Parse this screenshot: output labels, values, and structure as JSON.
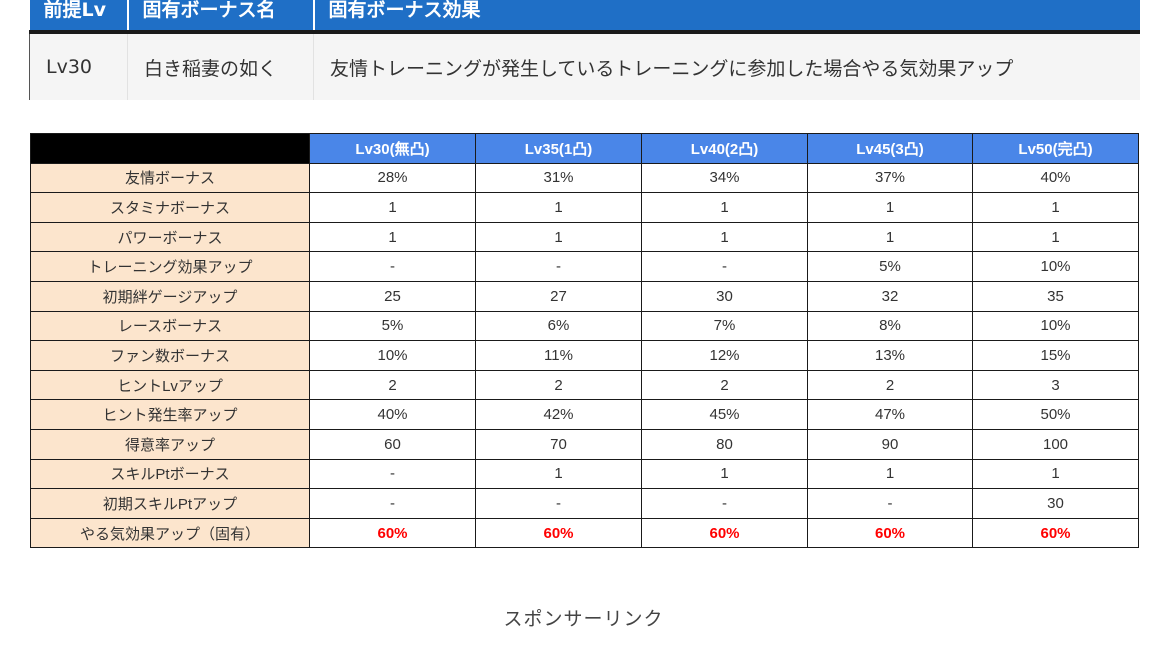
{
  "unique_bonus": {
    "headers": [
      "前提Lv",
      "固有ボーナス名",
      "固有ボーナス効果"
    ],
    "row": {
      "level": "Lv30",
      "name": "白き稲妻の如く",
      "effect": "友情トレーニングが発生しているトレーニングに参加した場合やる気効果アップ"
    }
  },
  "stats_table": {
    "columns": [
      "Lv30(無凸)",
      "Lv35(1凸)",
      "Lv40(2凸)",
      "Lv45(3凸)",
      "Lv50(完凸)"
    ],
    "rows": [
      {
        "label": "友情ボーナス",
        "values": [
          "28%",
          "31%",
          "34%",
          "37%",
          "40%"
        ]
      },
      {
        "label": "スタミナボーナス",
        "values": [
          "1",
          "1",
          "1",
          "1",
          "1"
        ]
      },
      {
        "label": "パワーボーナス",
        "values": [
          "1",
          "1",
          "1",
          "1",
          "1"
        ]
      },
      {
        "label": "トレーニング効果アップ",
        "values": [
          "-",
          "-",
          "-",
          "5%",
          "10%"
        ]
      },
      {
        "label": "初期絆ゲージアップ",
        "values": [
          "25",
          "27",
          "30",
          "32",
          "35"
        ]
      },
      {
        "label": "レースボーナス",
        "values": [
          "5%",
          "6%",
          "7%",
          "8%",
          "10%"
        ]
      },
      {
        "label": "ファン数ボーナス",
        "values": [
          "10%",
          "11%",
          "12%",
          "13%",
          "15%"
        ]
      },
      {
        "label": "ヒントLvアップ",
        "values": [
          "2",
          "2",
          "2",
          "2",
          "3"
        ]
      },
      {
        "label": "ヒント発生率アップ",
        "values": [
          "40%",
          "42%",
          "45%",
          "47%",
          "50%"
        ]
      },
      {
        "label": "得意率アップ",
        "values": [
          "60",
          "70",
          "80",
          "90",
          "100"
        ]
      },
      {
        "label": "スキルPtボーナス",
        "values": [
          "-",
          "1",
          "1",
          "1",
          "1"
        ]
      },
      {
        "label": "初期スキルPtアップ",
        "values": [
          "-",
          "-",
          "-",
          "-",
          "30"
        ]
      },
      {
        "label": "やる気効果アップ（固有）",
        "values": [
          "60%",
          "60%",
          "60%",
          "60%",
          "60%"
        ],
        "highlight": true
      }
    ],
    "highlight_color": "#ff0000",
    "header_color": "#4a86e8",
    "label_bg_color": "#fce5cd"
  },
  "sponsor_text": "スポンサーリンク"
}
